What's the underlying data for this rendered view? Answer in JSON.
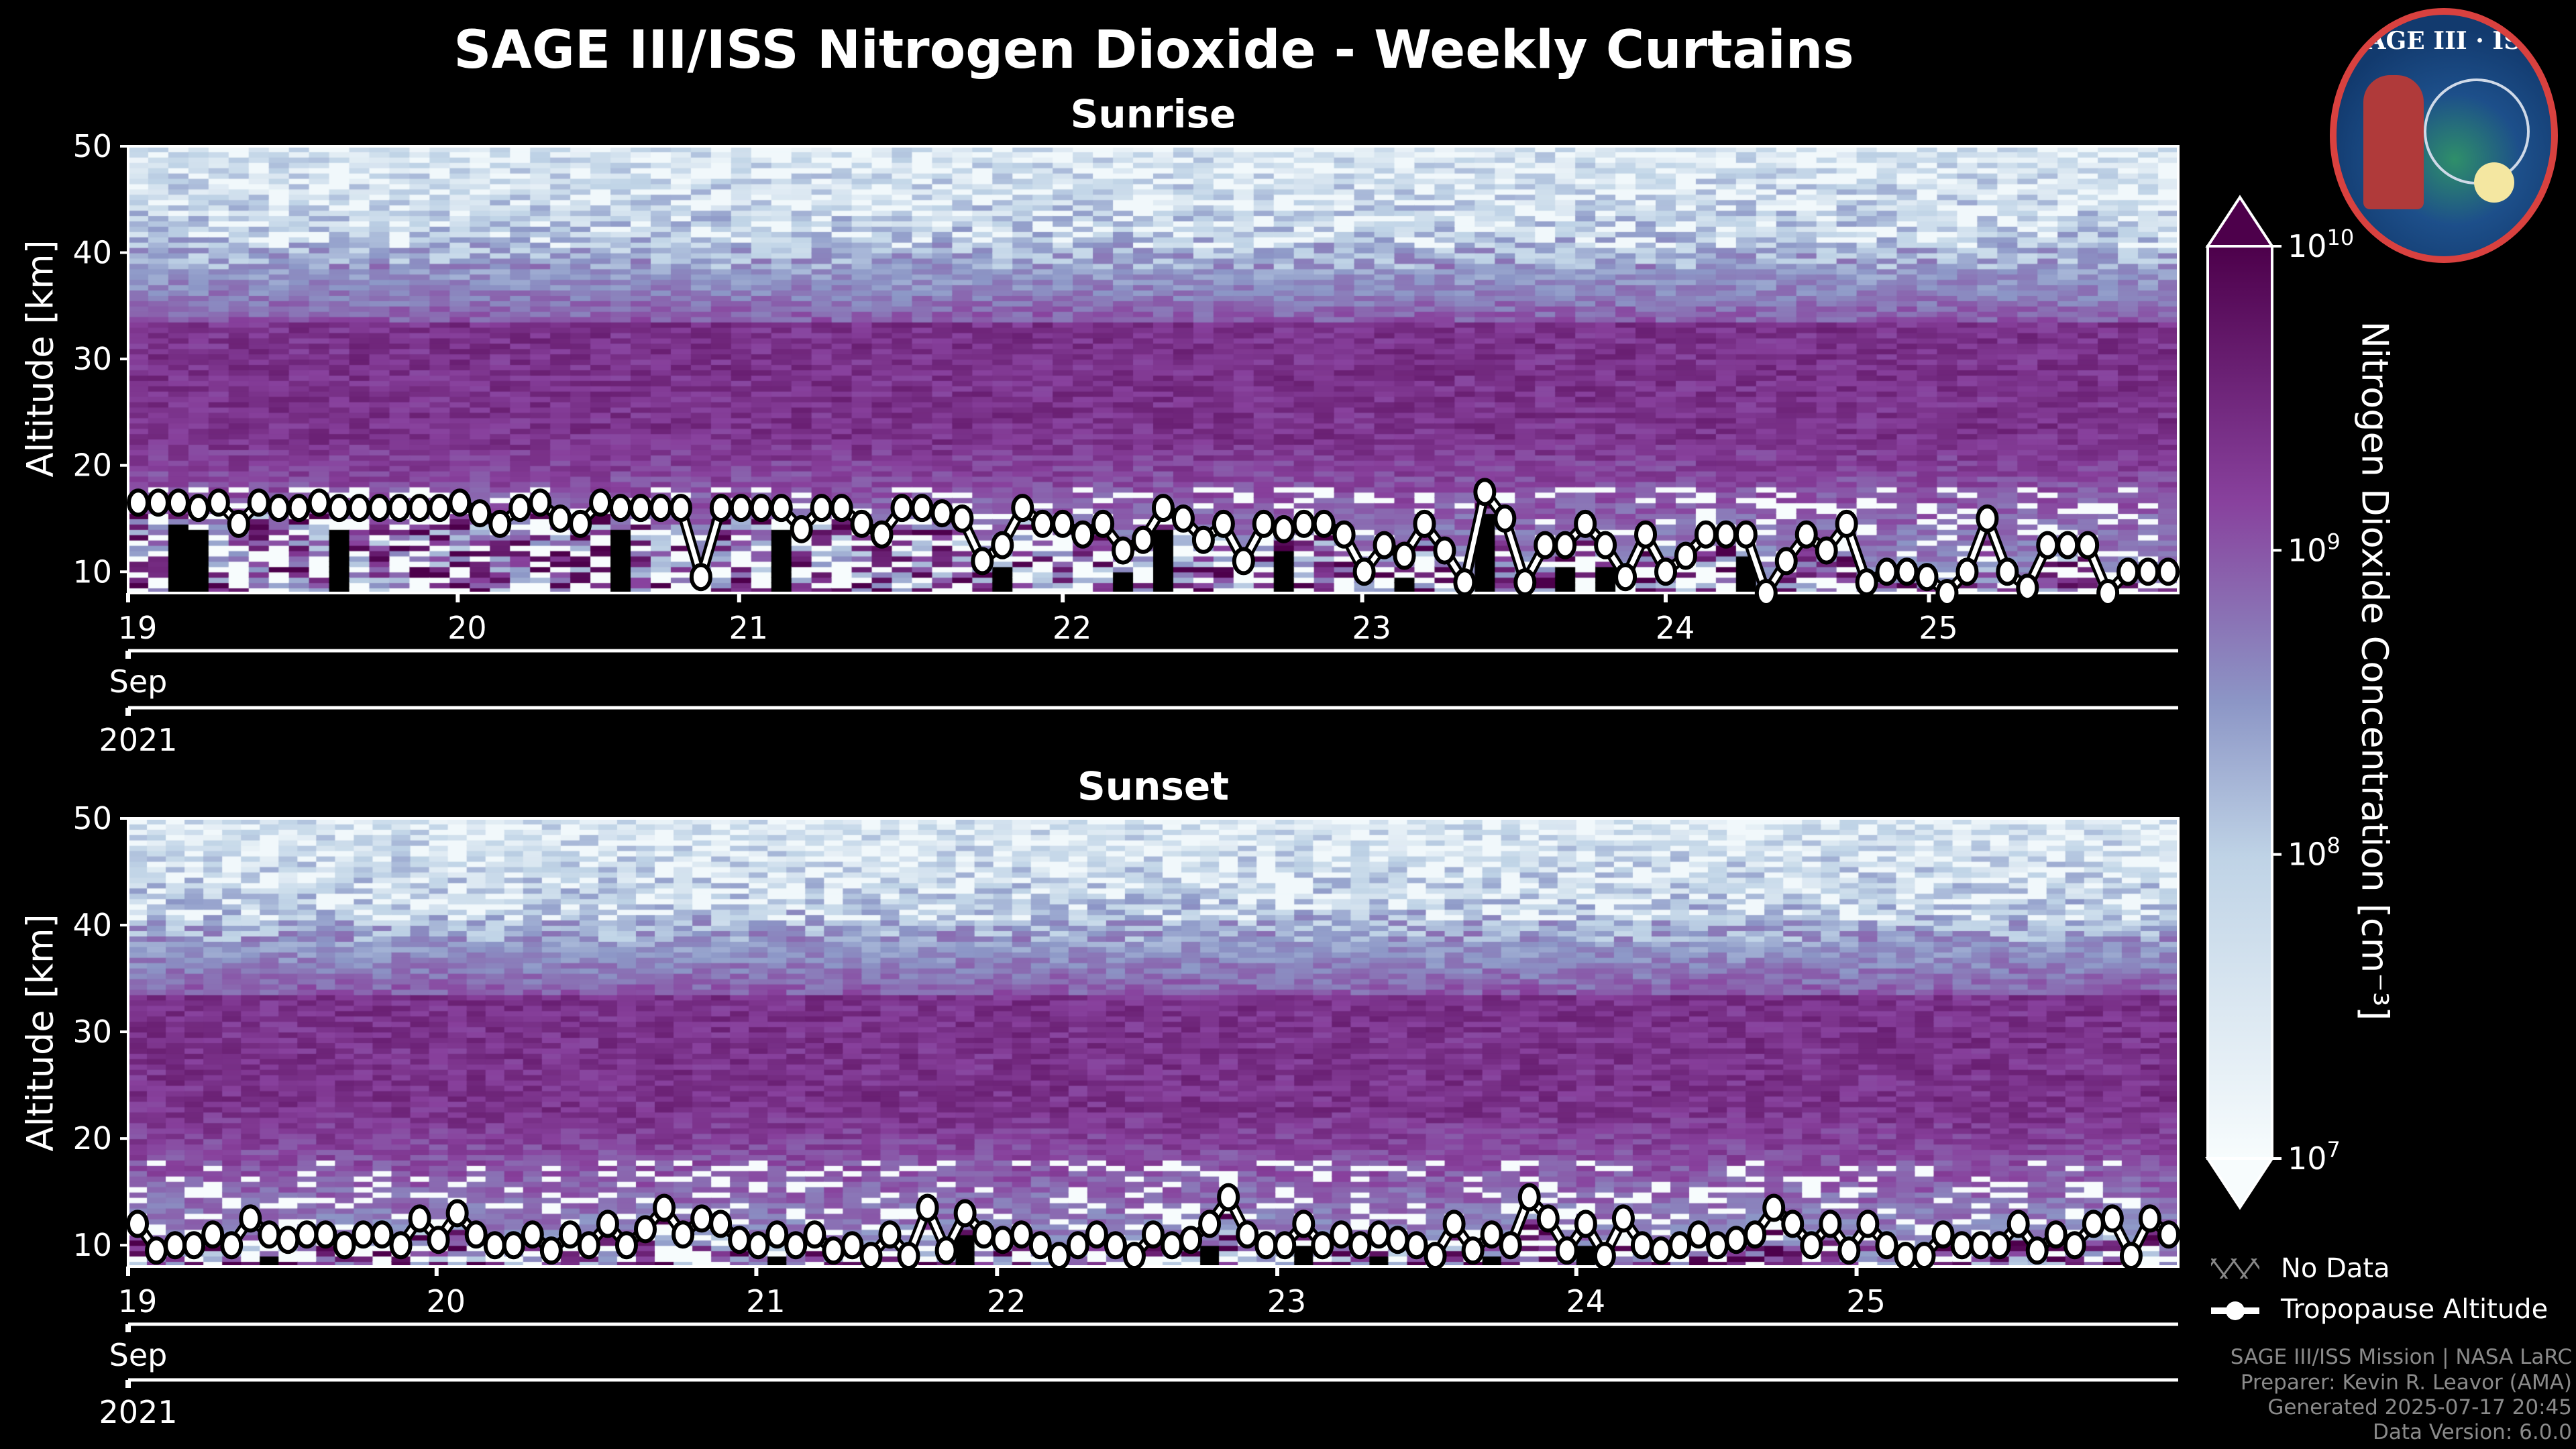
{
  "title": "SAGE III/ISS Nitrogen Dioxide - Weekly Curtains",
  "logo_text": "SAGE III · ISS",
  "colorbar": {
    "label": "Nitrogen Dioxide Concentration [cm⁻³]",
    "ticks": [
      {
        "exp": "10",
        "base": "10"
      },
      {
        "exp": "9",
        "base": "10"
      },
      {
        "exp": "8",
        "base": "10"
      },
      {
        "exp": "7",
        "base": "10"
      }
    ],
    "range_log10": [
      7,
      10
    ],
    "colormap": [
      "#f7fcfd",
      "#bfd3e6",
      "#8c96c6",
      "#88419d",
      "#4d004b"
    ]
  },
  "legend": {
    "no_data": "No Data",
    "tropopause": "Tropopause Altitude"
  },
  "footer": [
    "SAGE III/ISS Mission | NASA LaRC",
    "Preparer: Kevin R. Leavor (AMA)",
    "Generated 2025-07-17 20:45",
    "Data Version: 6.0.0"
  ],
  "chart_data": [
    {
      "type": "heatmap",
      "title": "Sunrise",
      "ylabel": "Altitude [km]",
      "ylim": [
        8,
        50
      ],
      "yticks": [
        10,
        20,
        30,
        40,
        50
      ],
      "xticks": [
        {
          "label": "19",
          "index": 0
        },
        {
          "label": "20",
          "index": 16.4
        },
        {
          "label": "21",
          "index": 30.4
        },
        {
          "label": "22",
          "index": 46.5
        },
        {
          "label": "23",
          "index": 61.4
        },
        {
          "label": "24",
          "index": 76.5
        },
        {
          "label": "25",
          "index": 89.6
        }
      ],
      "month_label": "Sep",
      "year_label": "2021",
      "tropopause_km": [
        16.5,
        16.5,
        16.5,
        16,
        16.5,
        14.5,
        16.5,
        16,
        16,
        16.5,
        16,
        16,
        16,
        16,
        16,
        16,
        16.5,
        15.5,
        14.5,
        16,
        16.5,
        15,
        14.5,
        16.5,
        16,
        16,
        16,
        16,
        9.5,
        16,
        16,
        16,
        16,
        14,
        16,
        16,
        14.5,
        13.5,
        16,
        16,
        15.5,
        15,
        11,
        12.5,
        16,
        14.5,
        14.5,
        13.5,
        14.5,
        12,
        13,
        16,
        15,
        13,
        14.5,
        11,
        14.5,
        14,
        14.5,
        14.5,
        13.5,
        10,
        12.5,
        11.5,
        14.5,
        12,
        9,
        17.5,
        15,
        9,
        12.5,
        12.5,
        14.5,
        12.5,
        9.5,
        13.5,
        10,
        11.5,
        13.5,
        13.5,
        13.5,
        8,
        11,
        13.5,
        12,
        14.5,
        9,
        10,
        10,
        9.5,
        8,
        10,
        15,
        10,
        8.5,
        12.5,
        12.5,
        12.5,
        8,
        10,
        10,
        10
      ]
    },
    {
      "type": "heatmap",
      "title": "Sunset",
      "ylabel": "Altitude [km]",
      "ylim": [
        8,
        50
      ],
      "yticks": [
        10,
        20,
        30,
        40,
        50
      ],
      "xticks": [
        {
          "label": "19",
          "index": 0
        },
        {
          "label": "20",
          "index": 16.4
        },
        {
          "label": "21",
          "index": 33.4
        },
        {
          "label": "22",
          "index": 46.2
        },
        {
          "label": "23",
          "index": 61.1
        },
        {
          "label": "24",
          "index": 77
        },
        {
          "label": "25",
          "index": 91.9
        }
      ],
      "month_label": "Sep",
      "year_label": "2021",
      "tropopause_km": [
        12,
        9.5,
        10,
        10,
        11,
        10,
        12.5,
        11,
        10.5,
        11,
        11,
        10,
        11,
        11,
        10,
        12.5,
        10.5,
        13,
        11,
        10,
        10,
        11,
        9.5,
        11,
        10,
        12,
        10,
        11.5,
        13.5,
        11,
        12.5,
        12,
        10.5,
        10,
        11,
        10,
        11,
        9.5,
        10,
        9,
        11,
        9,
        13.5,
        9.5,
        13,
        11,
        10.5,
        11,
        10,
        9,
        10,
        11,
        10,
        9,
        11,
        10,
        10.5,
        12,
        14.5,
        11,
        10,
        10,
        12,
        10,
        11,
        10,
        11,
        10.5,
        10,
        9,
        12,
        9.5,
        11,
        10,
        14.5,
        12.5,
        9.5,
        12,
        9,
        12.5,
        10,
        9.5,
        10,
        11,
        10,
        10.5,
        11,
        13.5,
        12,
        10,
        12,
        9.5,
        12,
        10,
        9,
        9,
        11,
        10,
        10,
        10,
        12,
        9.5,
        11,
        10,
        12,
        12.5,
        9,
        12.5,
        11
      ]
    }
  ]
}
